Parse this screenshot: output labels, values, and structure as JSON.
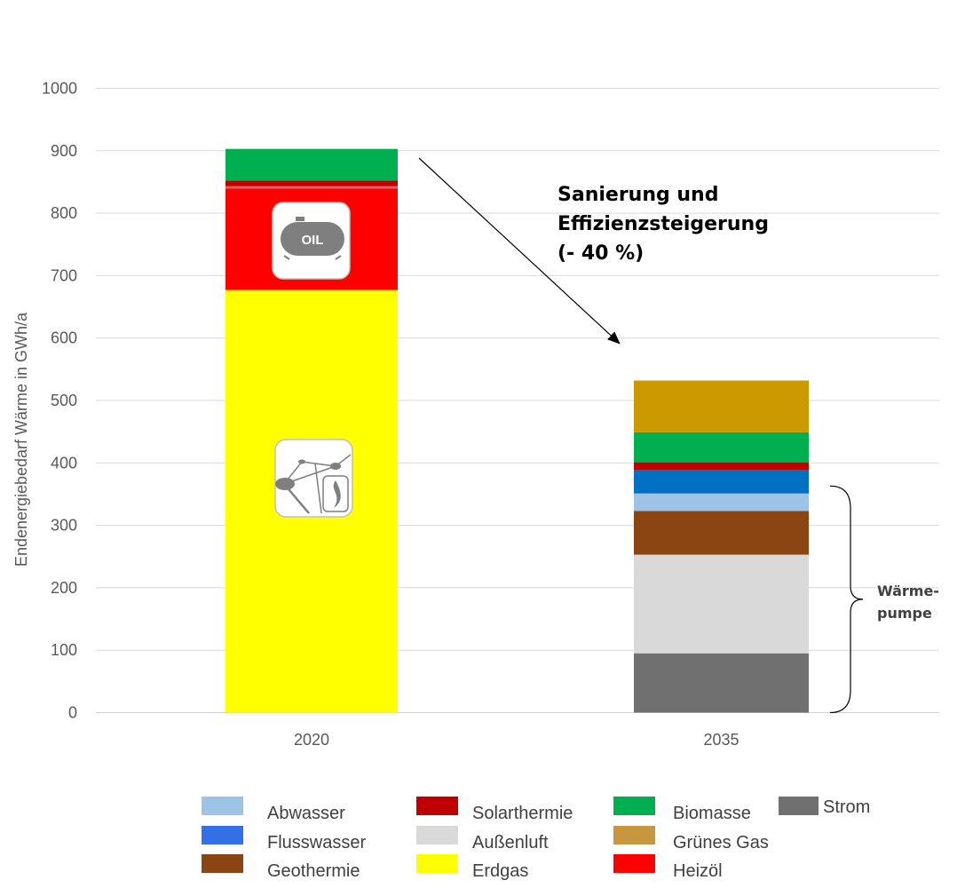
{
  "chart_data": {
    "type": "bar",
    "stacked": true,
    "categories": [
      "2020",
      "2035"
    ],
    "ylabel": "Endenergiebedarf Wärme in GWh/a",
    "ylim": [
      0,
      1000
    ],
    "yticks": [
      0,
      100,
      200,
      300,
      400,
      500,
      600,
      700,
      800,
      900,
      1000
    ],
    "grid": true,
    "legend_position": "bottom",
    "series": [
      {
        "name": "Strom",
        "color": "#707070",
        "values": [
          0,
          95
        ]
      },
      {
        "name": "Außenluft",
        "color": "#D9D9D9",
        "values": [
          0,
          158
        ]
      },
      {
        "name": "Geothermie",
        "color": "#8B4513",
        "values": [
          0,
          70
        ]
      },
      {
        "name": "Abwasser",
        "color": "#9DC3E6",
        "values": [
          0,
          28
        ]
      },
      {
        "name": "Flusswasser",
        "color": "#0070C0",
        "values": [
          0,
          38
        ]
      },
      {
        "name": "Erdgas",
        "color": "#FFFF00",
        "values": [
          677,
          0
        ]
      },
      {
        "name": "Heizöl",
        "color": "#FF0000",
        "values": [
          163,
          0
        ]
      },
      {
        "name": "Solarthermie",
        "color": "#C00000",
        "values": [
          12,
          12
        ]
      },
      {
        "name": "Biomasse",
        "color": "#00B050",
        "values": [
          51,
          48
        ]
      },
      {
        "name": "Grünes Gas",
        "color": "#CC9900",
        "values": [
          0,
          83
        ]
      }
    ],
    "legend_order": [
      [
        "Abwasser",
        "Solarthermie",
        "Biomasse",
        "Strom"
      ],
      [
        "Flusswasser",
        "Außenluft",
        "Grünes Gas"
      ],
      [
        "Geothermie",
        "Erdgas",
        "Heizöl"
      ]
    ],
    "legend_colors": {
      "Abwasser": "#9DC3E6",
      "Flusswasser": "#3370E6",
      "Geothermie": "#8B4513",
      "Solarthermie": "#C00000",
      "Außenluft": "#D9D9D9",
      "Erdgas": "#FFFF00",
      "Biomasse": "#00B050",
      "Grünes Gas": "#C8963E",
      "Heizöl": "#FF0000",
      "Strom": "#707070"
    },
    "annotations": {
      "arrow_text_line1": "Sanierung und",
      "arrow_text_line2": "Effizienzsteigerung",
      "arrow_text_line3": "(- 40 %)",
      "brace_label_line1": "Wärme-",
      "brace_label_line2": "pumpe",
      "brace_range": [
        0,
        363
      ],
      "oil_icon_text": "OIL"
    }
  }
}
